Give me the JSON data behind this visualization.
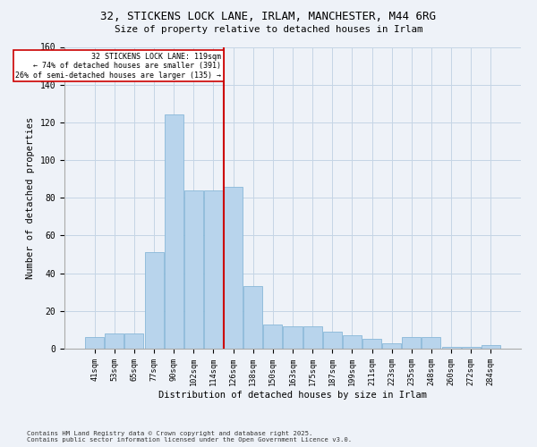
{
  "title_line1": "32, STICKENS LOCK LANE, IRLAM, MANCHESTER, M44 6RG",
  "title_line2": "Size of property relative to detached houses in Irlam",
  "xlabel": "Distribution of detached houses by size in Irlam",
  "ylabel": "Number of detached properties",
  "categories": [
    "41sqm",
    "53sqm",
    "65sqm",
    "77sqm",
    "90sqm",
    "102sqm",
    "114sqm",
    "126sqm",
    "138sqm",
    "150sqm",
    "163sqm",
    "175sqm",
    "187sqm",
    "199sqm",
    "211sqm",
    "223sqm",
    "235sqm",
    "248sqm",
    "260sqm",
    "272sqm",
    "284sqm"
  ],
  "values": [
    6,
    8,
    8,
    51,
    124,
    84,
    84,
    86,
    33,
    13,
    12,
    12,
    9,
    7,
    5,
    3,
    6,
    6,
    1,
    1,
    2
  ],
  "bar_color": "#b8d4ec",
  "bar_edge_color": "#88b8d8",
  "annotation_title": "32 STICKENS LOCK LANE: 119sqm",
  "annotation_line2": "← 74% of detached houses are smaller (391)",
  "annotation_line3": "26% of semi-detached houses are larger (135) →",
  "vline_color": "#cc0000",
  "ylim": [
    0,
    160
  ],
  "yticks": [
    0,
    20,
    40,
    60,
    80,
    100,
    120,
    140,
    160
  ],
  "footnote_line1": "Contains HM Land Registry data © Crown copyright and database right 2025.",
  "footnote_line2": "Contains public sector information licensed under the Open Government Licence v3.0.",
  "bg_color": "#eef2f8",
  "plot_bg_color": "#eef2f8",
  "grid_color": "#c5d5e5"
}
